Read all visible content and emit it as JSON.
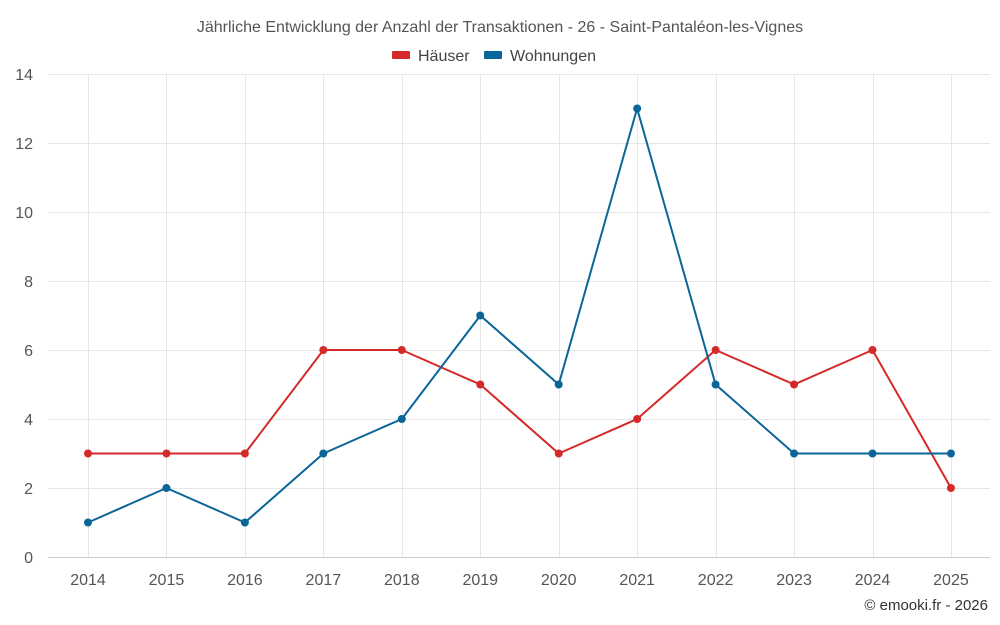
{
  "chart_data": {
    "type": "line",
    "title": "Jährliche Entwicklung der Anzahl der Transaktionen - 26 - Saint-Pantaléon-les-Vignes",
    "categories": [
      "2014",
      "2015",
      "2016",
      "2017",
      "2018",
      "2019",
      "2020",
      "2021",
      "2022",
      "2023",
      "2024",
      "2025"
    ],
    "series": [
      {
        "name": "Häuser",
        "color": "#d42a2a",
        "values": [
          3,
          3,
          3,
          6,
          6,
          5,
          3,
          4,
          6,
          5,
          6,
          2
        ]
      },
      {
        "name": "Wohnungen",
        "color": "#0a6698",
        "values": [
          1,
          2,
          1,
          3,
          4,
          7,
          5,
          13,
          5,
          3,
          3,
          3
        ]
      }
    ],
    "ylim": [
      0,
      14
    ],
    "yticks": [
      0,
      2,
      4,
      6,
      8,
      10,
      12,
      14
    ],
    "grid": true,
    "legend_position": "top-center",
    "xlabel": "",
    "ylabel": ""
  },
  "credit": "© emooki.fr - 2026"
}
